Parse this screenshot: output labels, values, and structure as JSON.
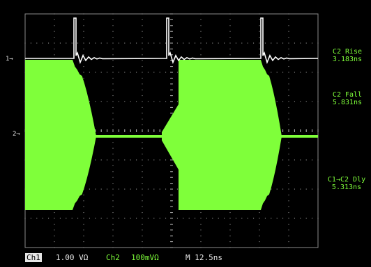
{
  "markers": {
    "ch1": "1→",
    "ch2": "2→"
  },
  "measurements": [
    {
      "label": "C2 Rise",
      "value": "3.183ns"
    },
    {
      "label": "C2 Fall",
      "value": "5.831ns"
    },
    {
      "label": "C1→C2 Dly",
      "value": "5.313ns"
    }
  ],
  "status_bar": {
    "ch1_label": "Ch1",
    "ch1_scale": "1.00 VΩ",
    "ch2_label": "Ch2",
    "ch2_scale": "100mVΩ",
    "timebase": "M 12.5ns"
  },
  "colors": {
    "ch1": "#ffffff",
    "ch2": "#7fff3a",
    "grid": "#b4b4b4"
  }
}
